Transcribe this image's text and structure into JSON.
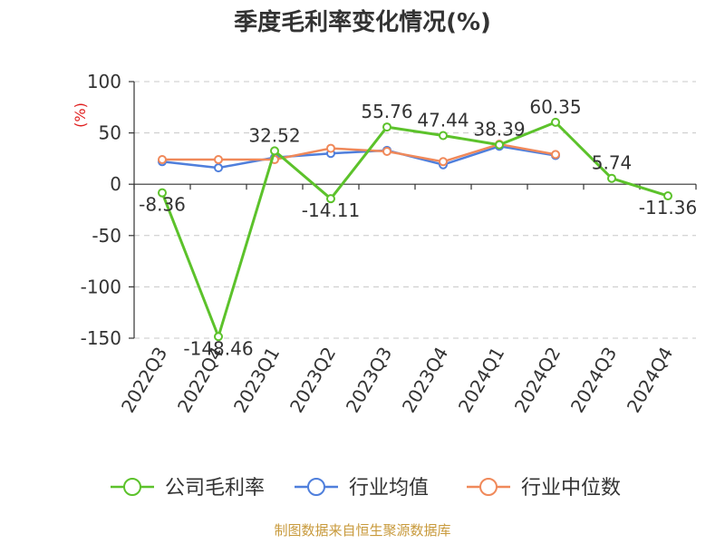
{
  "chart_data": {
    "type": "line",
    "title": "季度毛利率变化情况(%)",
    "ylabel": "(%)",
    "categories": [
      "2022Q3",
      "2022Q4",
      "2023Q1",
      "2023Q2",
      "2023Q3",
      "2023Q4",
      "2024Q1",
      "2024Q2",
      "2024Q3",
      "2024Q4"
    ],
    "ylim": [
      -150,
      100
    ],
    "yticks": [
      100,
      50,
      0,
      -50,
      -100,
      -150
    ],
    "grid": true,
    "legend_position": "bottom",
    "series": [
      {
        "name": "公司毛利率",
        "color": "#5cc22b",
        "values": [
          -8.36,
          -148.46,
          32.52,
          -14.11,
          55.76,
          47.44,
          38.39,
          60.35,
          5.74,
          -11.36
        ],
        "data_labels": [
          "-8.36",
          "-148.46",
          "32.52",
          "-14.11",
          "55.76",
          "47.44",
          "38.39",
          "60.35",
          "5.74",
          "-11.36"
        ]
      },
      {
        "name": "行业均值",
        "color": "#4f7fdc",
        "values": [
          22,
          16,
          26,
          30,
          33,
          19,
          37,
          28,
          null,
          null
        ]
      },
      {
        "name": "行业中位数",
        "color": "#f0895a",
        "values": [
          24,
          24,
          24,
          35,
          32,
          22,
          39,
          29,
          null,
          null
        ]
      }
    ]
  },
  "source": "制图数据来自恒生聚源数据库"
}
